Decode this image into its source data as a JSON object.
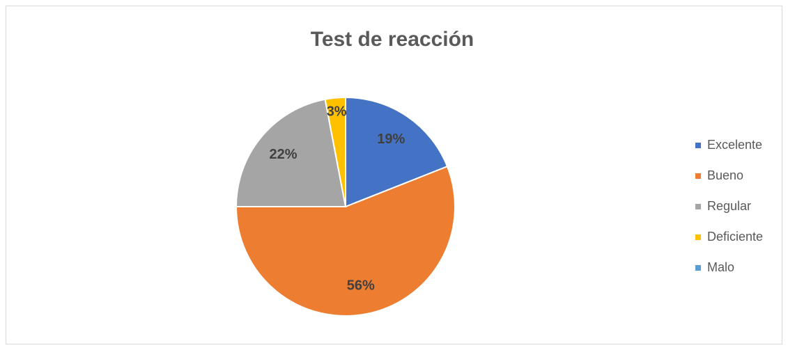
{
  "chart_data": {
    "type": "pie",
    "title": "Test de reacción",
    "categories": [
      "Excelente",
      "Bueno",
      "Regular",
      "Deficiente",
      "Malo"
    ],
    "values": [
      19,
      56,
      22,
      3,
      0
    ],
    "value_labels": [
      "19%",
      "56%",
      "22%",
      "3%",
      null
    ],
    "colors": [
      "#4472c4",
      "#ed7d31",
      "#a5a5a5",
      "#ffc000",
      "#5b9bd5"
    ],
    "legend": "right"
  }
}
